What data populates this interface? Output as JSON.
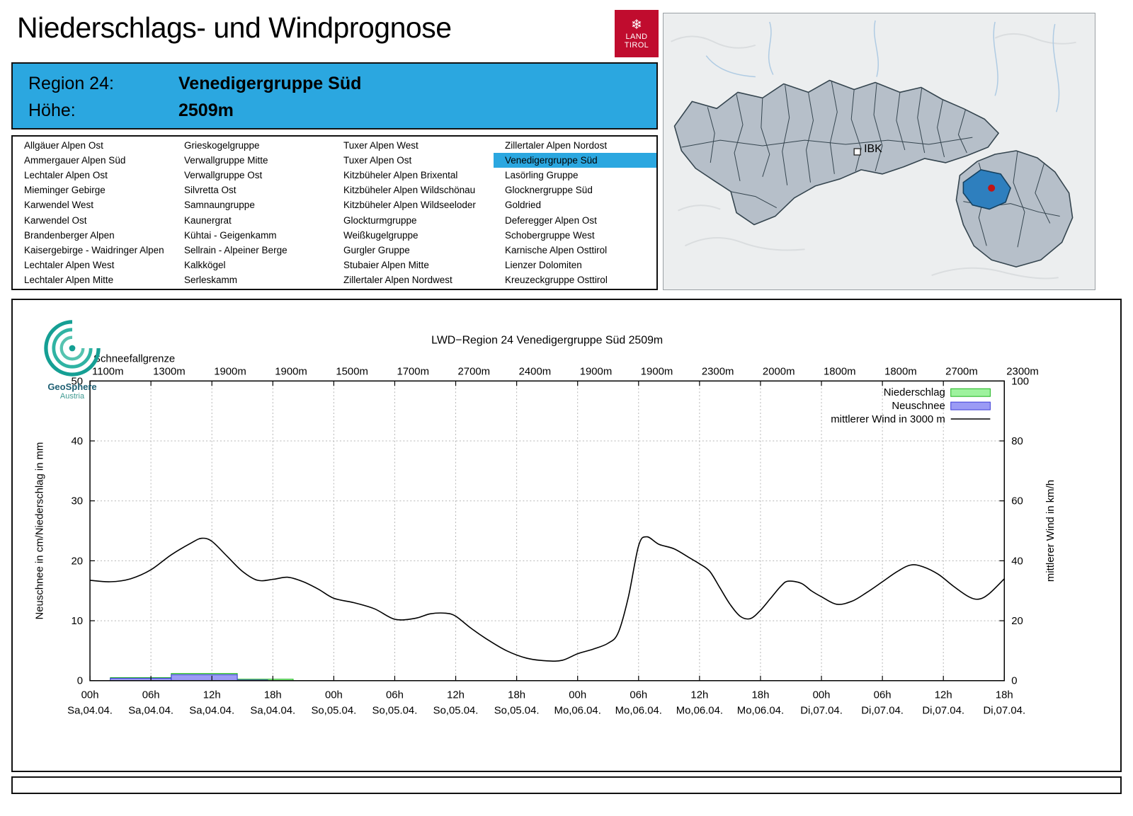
{
  "page": {
    "title": "Niederschlags- und Windprognose"
  },
  "logo": {
    "land": "LAND",
    "tirol": "TIROL",
    "snowflake_icon": "❄"
  },
  "region_header": {
    "region_label": "Region 24:",
    "region_value": "Venedigergruppe Süd",
    "altitude_label": "Höhe:",
    "altitude_value": "2509m",
    "background_color": "#2ba7e0"
  },
  "map": {
    "city_label": "IBK",
    "selected_region_color": "#2e7fbe",
    "marker_color": "#c11414"
  },
  "region_table": {
    "selected": "Venedigergruppe Süd",
    "columns": [
      [
        "Allgäuer Alpen Ost",
        "Ammergauer Alpen Süd",
        "Lechtaler Alpen Ost",
        "Mieminger Gebirge",
        "Karwendel West",
        "Karwendel Ost",
        "Brandenberger Alpen",
        "Kaisergebirge - Waidringer Alpen",
        "Lechtaler Alpen West",
        "Lechtaler Alpen Mitte"
      ],
      [
        "Grieskogelgruppe",
        "Verwallgruppe Mitte",
        "Verwallgruppe Ost",
        "Silvretta Ost",
        "Samnaungruppe",
        "Kaunergrat",
        "Kühtai - Geigenkamm",
        "Sellrain - Alpeiner Berge",
        "Kalkkögel",
        "Serleskamm"
      ],
      [
        "Tuxer Alpen West",
        "Tuxer Alpen Ost",
        "Kitzbüheler Alpen Brixental",
        "Kitzbüheler Alpen Wildschönau",
        "Kitzbüheler Alpen Wildseeloder",
        "Glockturmgruppe",
        "Weißkugelgruppe",
        "Gurgler Gruppe",
        "Stubaier Alpen Mitte",
        "Zillertaler Alpen Nordwest"
      ],
      [
        "Zillertaler Alpen Nordost",
        "Venedigergruppe Süd",
        "Lasörling Gruppe",
        "Glocknergruppe Süd",
        "Goldried",
        "Deferegger Alpen Ost",
        "Schobergruppe West",
        "Karnische Alpen Osttirol",
        "Lienzer Dolomiten",
        "Kreuzeckgruppe Osttirol"
      ]
    ]
  },
  "geosphere": {
    "name": "GeoSphere",
    "country": "Austria"
  },
  "chart_data": {
    "type": "line",
    "title": "LWD−Region 24 Venedigergruppe Süd 2509m",
    "snowline_label": "Schneefallgrenze",
    "snowline_values": [
      "1100m",
      "1300m",
      "1900m",
      "1900m",
      "1500m",
      "1700m",
      "2700m",
      "2400m",
      "1900m",
      "1900m",
      "2300m",
      "2000m",
      "1800m",
      "1800m",
      "2700m",
      "2300m"
    ],
    "ylabel_left": "Neuschnee in cm/Niederschlag in mm",
    "ylabel_right": "mittlerer Wind in km/h",
    "ylim_left": [
      0,
      50
    ],
    "ylim_right": [
      0,
      100
    ],
    "yticks_left": [
      0,
      10,
      20,
      30,
      40,
      50
    ],
    "yticks_right": [
      0,
      20,
      40,
      60,
      80,
      100
    ],
    "x_range": [
      0,
      90
    ],
    "x_ticks": [
      0,
      6,
      12,
      18,
      24,
      30,
      36,
      42,
      48,
      54,
      60,
      66,
      72,
      78,
      84,
      90
    ],
    "x_tick_labels": [
      "00h",
      "06h",
      "12h",
      "18h",
      "00h",
      "06h",
      "12h",
      "18h",
      "00h",
      "06h",
      "12h",
      "18h",
      "00h",
      "06h",
      "12h",
      "18h"
    ],
    "x_tick_dates": [
      "Sa,04.04.",
      "Sa,04.04.",
      "Sa,04.04.",
      "Sa,04.04.",
      "So,05.04.",
      "So,05.04.",
      "So,05.04.",
      "So,05.04.",
      "Mo,06.04.",
      "Mo,06.04.",
      "Mo,06.04.",
      "Mo,06.04.",
      "Di,07.04.",
      "Di,07.04.",
      "Di,07.04.",
      "Di,07.04."
    ],
    "legend": [
      {
        "label": "Niederschlag",
        "type": "box",
        "fill": "#9ef29e",
        "border": "#1cb41c"
      },
      {
        "label": "Neuschnee",
        "type": "box",
        "fill": "#9b9bf5",
        "border": "#3b3bd6"
      },
      {
        "label": "mittlerer Wind in 3000 m",
        "type": "line",
        "color": "#000000"
      }
    ],
    "colors": {
      "precip_fill": "#9ef29e",
      "precip_border": "#1cb41c",
      "snow_fill": "#9b9bf5",
      "snow_border": "#3b3bd6",
      "wind_line": "#000000"
    },
    "precip_bars_mm": [
      [
        2,
        8,
        0.5
      ],
      [
        8,
        14.5,
        1.2
      ],
      [
        14.5,
        20,
        0.25
      ]
    ],
    "snow_bars_cm": [
      [
        2,
        8,
        0.4
      ],
      [
        8,
        14.5,
        1.0
      ],
      [
        14.5,
        17.5,
        0.1
      ]
    ],
    "wind_series": {
      "name": "mittlerer Wind in 3000 m",
      "axis": "right",
      "unit": "km/h",
      "points": [
        [
          0,
          33.5
        ],
        [
          2,
          33
        ],
        [
          4,
          34
        ],
        [
          6,
          37
        ],
        [
          8,
          42
        ],
        [
          10,
          46
        ],
        [
          11,
          47.5
        ],
        [
          12,
          46.5
        ],
        [
          13.5,
          41.5
        ],
        [
          15,
          36.5
        ],
        [
          16.5,
          33.5
        ],
        [
          18,
          33.8
        ],
        [
          19.5,
          34.5
        ],
        [
          21,
          33
        ],
        [
          22.5,
          30.5
        ],
        [
          24,
          27.5
        ],
        [
          26,
          26
        ],
        [
          28,
          24
        ],
        [
          30,
          20.5
        ],
        [
          32,
          20.8
        ],
        [
          33.5,
          22.3
        ],
        [
          35,
          22.5
        ],
        [
          36,
          21.5
        ],
        [
          37.5,
          17.5
        ],
        [
          39,
          14
        ],
        [
          41,
          10
        ],
        [
          43,
          7.5
        ],
        [
          45,
          6.6
        ],
        [
          46.5,
          6.8
        ],
        [
          48,
          9
        ],
        [
          49.5,
          10.5
        ],
        [
          51,
          12.5
        ],
        [
          52,
          16
        ],
        [
          53,
          28
        ],
        [
          54,
          45
        ],
        [
          54.8,
          48
        ],
        [
          56,
          45.5
        ],
        [
          57.5,
          44
        ],
        [
          59,
          41
        ],
        [
          60,
          39
        ],
        [
          61,
          36.5
        ],
        [
          62,
          31
        ],
        [
          63,
          25.5
        ],
        [
          64,
          21.5
        ],
        [
          65,
          20.7
        ],
        [
          66,
          23.5
        ],
        [
          67,
          27.5
        ],
        [
          68,
          31.5
        ],
        [
          68.7,
          33.2
        ],
        [
          70,
          32.5
        ],
        [
          71,
          30
        ],
        [
          72,
          28
        ],
        [
          73.5,
          25.5
        ],
        [
          75,
          26.5
        ],
        [
          76.5,
          29.5
        ],
        [
          78,
          33
        ],
        [
          79.5,
          36.5
        ],
        [
          80.8,
          38.6
        ],
        [
          82,
          38
        ],
        [
          83.5,
          35.5
        ],
        [
          85,
          31.5
        ],
        [
          86.5,
          28
        ],
        [
          87.5,
          27.2
        ],
        [
          88.5,
          29
        ],
        [
          90,
          34
        ]
      ]
    }
  }
}
